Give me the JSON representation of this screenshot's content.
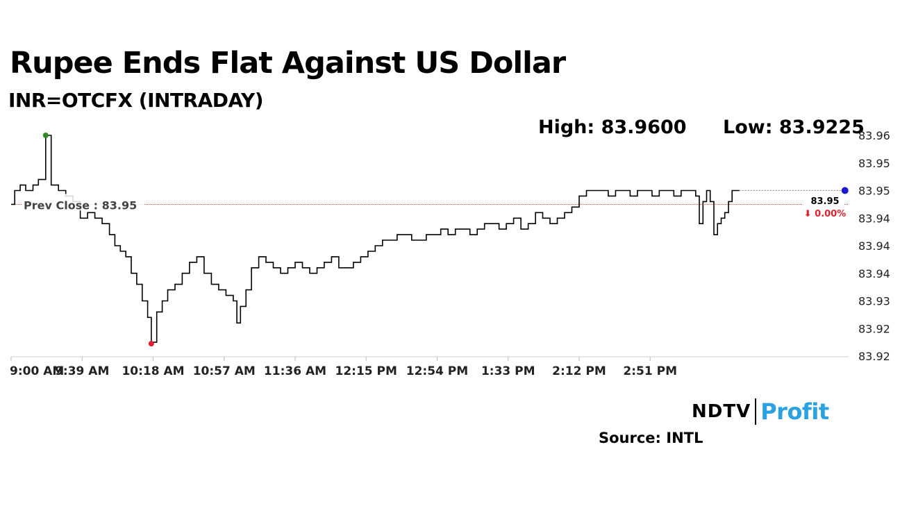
{
  "header": {
    "title": "Rupee Ends Flat Against US Dollar",
    "subtitle": "INR=OTCFX (INTRADAY)",
    "high_text": "High: 83.9600",
    "low_text": "Low: 83.9225"
  },
  "footer": {
    "logo_ndtv": "NDTV",
    "logo_profit": "Profit",
    "source": "Source: INTL"
  },
  "colors": {
    "line": "#000000",
    "prev_close_line": "#c0392b",
    "high_marker": "#2e8b1f",
    "low_marker": "#e0202e",
    "last_marker": "#1a1acc",
    "change_down": "#e0202e",
    "logo_profit": "#2aa1e0"
  },
  "chart_data": {
    "type": "line",
    "title": "Rupee Ends Flat Against US Dollar",
    "subtitle": "INR=OTCFX (INTRADAY)",
    "ylim": [
      83.92,
      83.96
    ],
    "y_ticks": [
      83.92,
      83.925,
      83.93,
      83.935,
      83.94,
      83.945,
      83.95,
      83.955,
      83.96
    ],
    "y_tick_labels": [
      "83.92",
      "83.92",
      "83.93",
      "83.94",
      "83.94",
      "83.94",
      "83.95",
      "83.95",
      "83.96"
    ],
    "x_domain_minutes": [
      540,
      1000
    ],
    "x_ticks_minutes": [
      540,
      579,
      618,
      657,
      696,
      735,
      774,
      813,
      852,
      891
    ],
    "x_tick_labels": [
      "9:00 AM",
      "9:39 AM",
      "10:18 AM",
      "10:57 AM",
      "11:36 AM",
      "12:15 PM",
      "12:54 PM",
      "1:33 PM",
      "2:12 PM",
      "2:51 PM"
    ],
    "prev_close": 83.9475,
    "prev_close_label": "Prev Close : 83.95",
    "high": {
      "minute": 559,
      "value": 83.96
    },
    "low": {
      "minute": 617,
      "value": 83.9225
    },
    "last": {
      "minute": 998,
      "value": 83.95,
      "label": "83.95",
      "change": "⬇ 0.00%"
    },
    "series": [
      {
        "points": [
          [
            540,
            83.9475
          ],
          [
            542,
            83.95
          ],
          [
            545,
            83.951
          ],
          [
            548,
            83.95
          ],
          [
            552,
            83.951
          ],
          [
            555,
            83.952
          ],
          [
            559,
            83.96
          ],
          [
            562,
            83.951
          ],
          [
            566,
            83.95
          ],
          [
            570,
            83.949
          ],
          [
            574,
            83.948
          ],
          [
            578,
            83.945
          ],
          [
            582,
            83.946
          ],
          [
            586,
            83.945
          ],
          [
            590,
            83.944
          ],
          [
            594,
            83.942
          ],
          [
            597,
            83.94
          ],
          [
            600,
            83.939
          ],
          [
            603,
            83.938
          ],
          [
            606,
            83.935
          ],
          [
            609,
            83.933
          ],
          [
            612,
            83.93
          ],
          [
            615,
            83.927
          ],
          [
            617,
            83.9225
          ],
          [
            620,
            83.928
          ],
          [
            623,
            83.93
          ],
          [
            626,
            83.932
          ],
          [
            630,
            83.933
          ],
          [
            634,
            83.935
          ],
          [
            638,
            83.937
          ],
          [
            642,
            83.938
          ],
          [
            646,
            83.935
          ],
          [
            650,
            83.933
          ],
          [
            654,
            83.932
          ],
          [
            658,
            83.931
          ],
          [
            662,
            83.93
          ],
          [
            664,
            83.926
          ],
          [
            666,
            83.929
          ],
          [
            669,
            83.932
          ],
          [
            672,
            83.936
          ],
          [
            676,
            83.938
          ],
          [
            680,
            83.937
          ],
          [
            684,
            83.936
          ],
          [
            688,
            83.935
          ],
          [
            692,
            83.936
          ],
          [
            696,
            83.937
          ],
          [
            700,
            83.936
          ],
          [
            704,
            83.935
          ],
          [
            708,
            83.936
          ],
          [
            712,
            83.937
          ],
          [
            716,
            83.938
          ],
          [
            720,
            83.936
          ],
          [
            724,
            83.936
          ],
          [
            728,
            83.937
          ],
          [
            732,
            83.938
          ],
          [
            736,
            83.939
          ],
          [
            740,
            83.94
          ],
          [
            744,
            83.941
          ],
          [
            748,
            83.941
          ],
          [
            752,
            83.942
          ],
          [
            756,
            83.942
          ],
          [
            760,
            83.941
          ],
          [
            764,
            83.941
          ],
          [
            768,
            83.942
          ],
          [
            772,
            83.942
          ],
          [
            776,
            83.943
          ],
          [
            780,
            83.942
          ],
          [
            784,
            83.943
          ],
          [
            788,
            83.943
          ],
          [
            792,
            83.942
          ],
          [
            796,
            83.943
          ],
          [
            800,
            83.944
          ],
          [
            804,
            83.944
          ],
          [
            808,
            83.943
          ],
          [
            812,
            83.944
          ],
          [
            816,
            83.945
          ],
          [
            820,
            83.943
          ],
          [
            824,
            83.944
          ],
          [
            828,
            83.946
          ],
          [
            832,
            83.945
          ],
          [
            836,
            83.944
          ],
          [
            840,
            83.945
          ],
          [
            844,
            83.946
          ],
          [
            848,
            83.947
          ],
          [
            852,
            83.949
          ],
          [
            856,
            83.95
          ],
          [
            860,
            83.95
          ],
          [
            864,
            83.95
          ],
          [
            868,
            83.949
          ],
          [
            872,
            83.95
          ],
          [
            876,
            83.95
          ],
          [
            880,
            83.949
          ],
          [
            884,
            83.95
          ],
          [
            888,
            83.95
          ],
          [
            892,
            83.949
          ],
          [
            896,
            83.95
          ],
          [
            900,
            83.95
          ],
          [
            904,
            83.949
          ],
          [
            908,
            83.95
          ],
          [
            912,
            83.95
          ],
          [
            916,
            83.949
          ],
          [
            918,
            83.944
          ],
          [
            920,
            83.948
          ],
          [
            922,
            83.95
          ],
          [
            924,
            83.948
          ],
          [
            926,
            83.942
          ],
          [
            928,
            83.944
          ],
          [
            930,
            83.945
          ],
          [
            932,
            83.946
          ],
          [
            934,
            83.948
          ],
          [
            936,
            83.95
          ],
          [
            938,
            83.95
          ],
          [
            940,
            83.95
          ]
        ]
      }
    ]
  }
}
